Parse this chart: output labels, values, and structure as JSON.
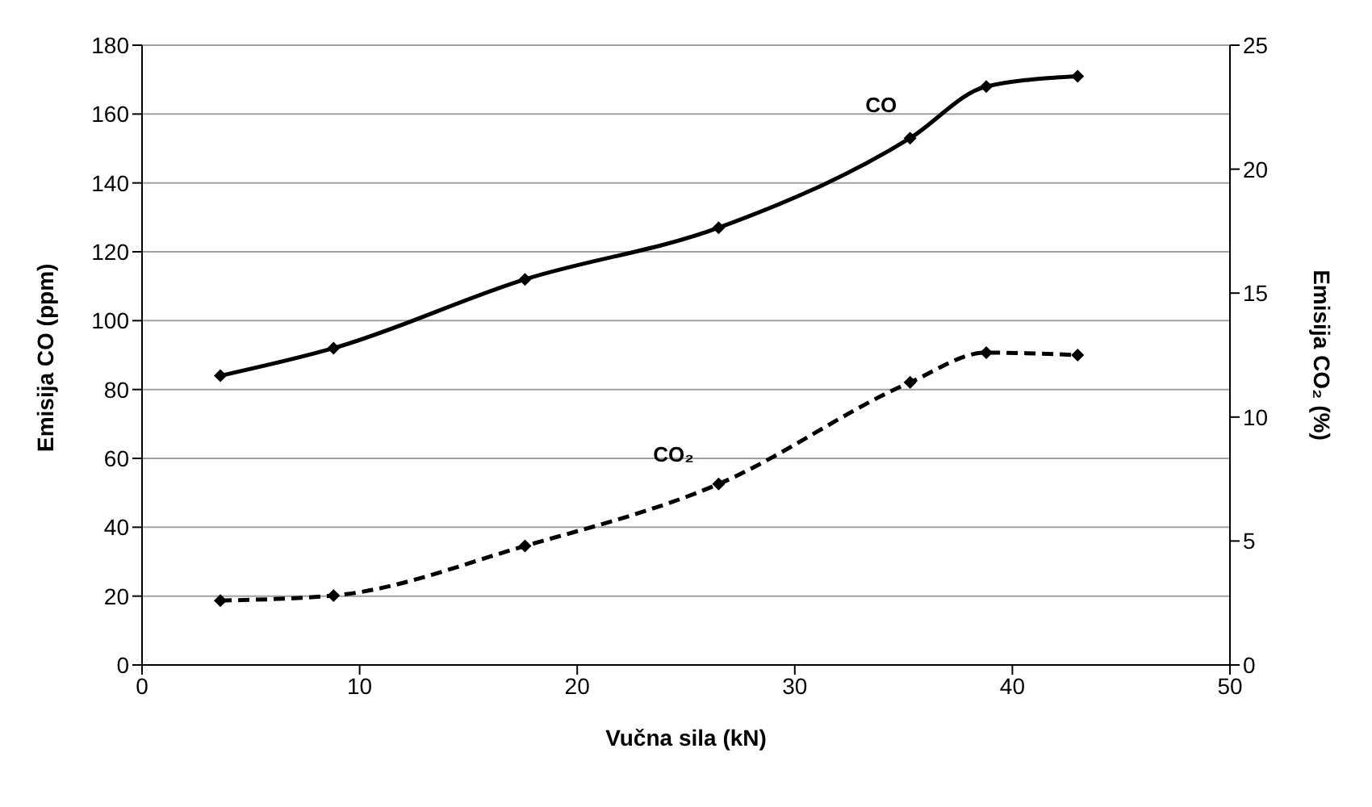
{
  "chart_data": {
    "type": "line",
    "xlabel": "Vučna sila (kN)",
    "ylabel": "Emisija CO (ppm)",
    "y2label": "Emisija CO₂ (%)",
    "x": [
      3.6,
      8.8,
      17.6,
      26.5,
      35.3,
      38.8,
      43.0
    ],
    "series": [
      {
        "name": "CO",
        "color": "#000000",
        "values": [
          84,
          92,
          112,
          127,
          153,
          168,
          171
        ],
        "line_style": "solid"
      },
      {
        "name": "CO₂",
        "color": "#000000",
        "values": [
          2.6,
          2.8,
          4.8,
          7.3,
          11.4,
          12.6,
          12.5
        ],
        "axis": "y2",
        "line_style": "dashed"
      }
    ],
    "xlim": [
      0,
      50
    ],
    "xticks": [
      0,
      10,
      20,
      30,
      40,
      50
    ],
    "ylim": [
      0,
      180
    ],
    "yticks": [
      0,
      20,
      40,
      60,
      80,
      100,
      120,
      140,
      160,
      180
    ],
    "y2lim": [
      0,
      25
    ],
    "y2ticks": [
      0,
      5,
      10,
      15,
      20,
      25
    ],
    "grid": "y",
    "legend": false,
    "marker": "diamond"
  }
}
